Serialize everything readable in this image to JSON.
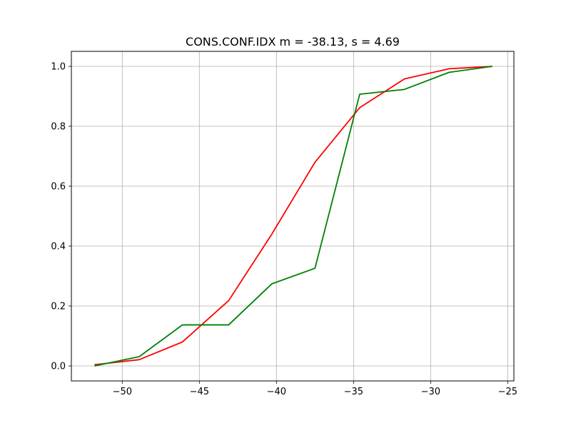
{
  "chart_data": {
    "type": "line",
    "title": "CONS.CONF.IDX  m = -38.13,  s = 4.69",
    "xlabel": "",
    "ylabel": "",
    "xlim": [
      -53.3,
      -24.6
    ],
    "ylim": [
      -0.05,
      1.05
    ],
    "xticks": [
      -50,
      -45,
      -40,
      -35,
      -30,
      -25
    ],
    "xtick_labels": [
      "−50",
      "−45",
      "−40",
      "−35",
      "−30",
      "−25"
    ],
    "yticks": [
      0.0,
      0.2,
      0.4,
      0.6,
      0.8,
      1.0
    ],
    "ytick_labels": [
      "0.0",
      "0.2",
      "0.4",
      "0.6",
      "0.8",
      "1.0"
    ],
    "grid": true,
    "series": [
      {
        "color": "#ff0000",
        "x": [
          -51.8,
          -48.9,
          -46.1,
          -43.1,
          -40.3,
          -37.5,
          -34.6,
          -31.7,
          -28.8,
          -26.0
        ],
        "y": [
          0.004,
          0.021,
          0.08,
          0.218,
          0.44,
          0.68,
          0.862,
          0.958,
          0.992,
          1.0
        ]
      },
      {
        "color": "#008000",
        "x": [
          -51.8,
          -48.9,
          -46.1,
          -43.1,
          -40.3,
          -37.5,
          -34.6,
          -31.7,
          -28.8,
          -26.0
        ],
        "y": [
          0.0,
          0.031,
          0.137,
          0.137,
          0.274,
          0.326,
          0.907,
          0.923,
          0.98,
          1.0
        ]
      }
    ]
  }
}
